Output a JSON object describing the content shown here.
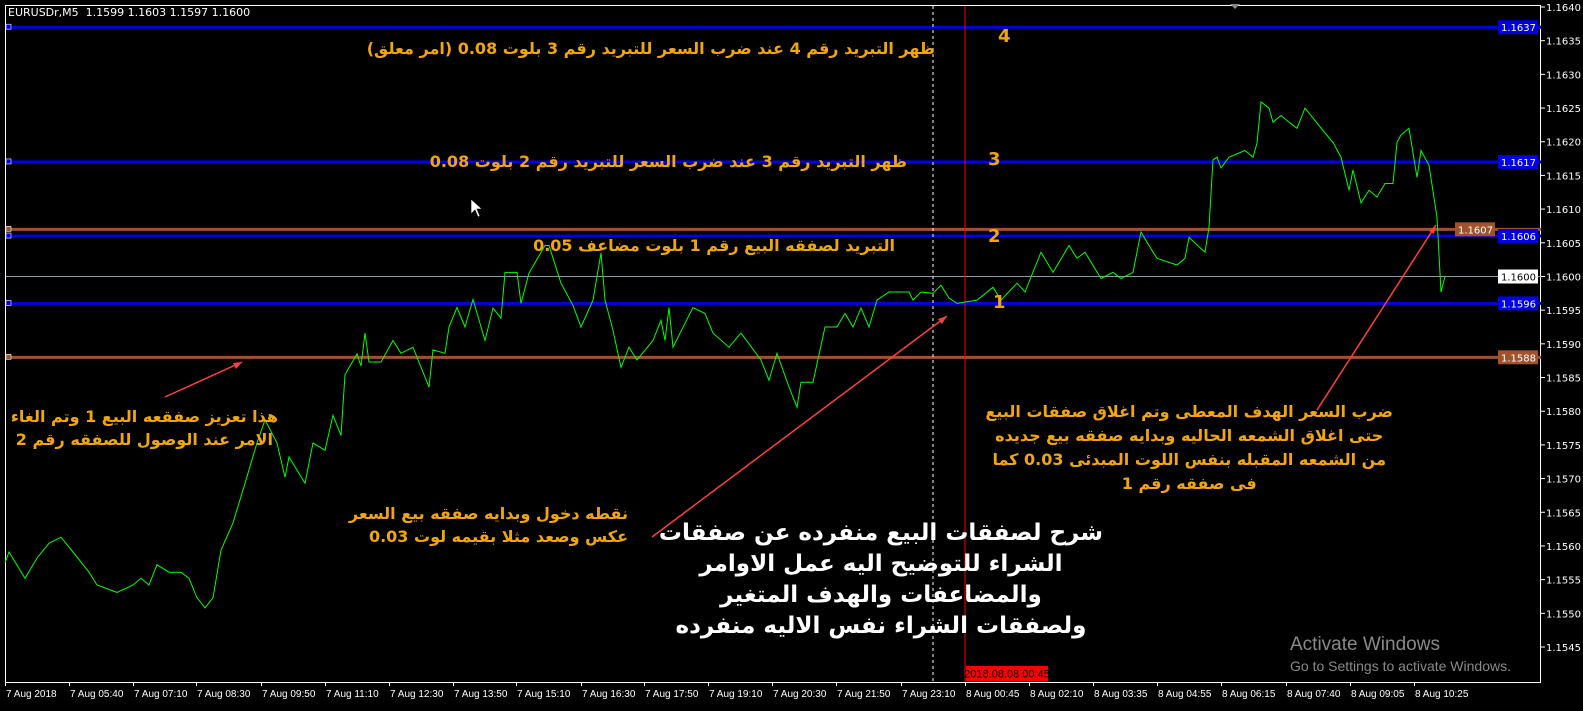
{
  "window": {
    "symbol_info": "EURUSDr,M5  1.1599 1.1603 1.1597 1.1600"
  },
  "colors": {
    "background": "#000000",
    "price_line": "#00ff00",
    "level_blue": "#0000e0",
    "level_brown": "#a0522d",
    "bid_line": "#8a9aa8",
    "annotation_text": "#f2a50c",
    "arrow": "#ff4040",
    "time_marker": "#ff0000"
  },
  "annotations": {
    "level4_text": "ظهر التبريد رقم 4 عند ضرب السعر للتبريد رقم 3 بلوت 0.08 (امر معلق)",
    "level3_text": "ظهر التبريد رقم 3 عند ضرب السعر للتبريد رقم 2 بلوت 0.08",
    "level2_text": "التبريد لصفقه البيع رقم 1 بلوت مضاعف 0.05",
    "num4": "4",
    "num3": "3",
    "num2": "2",
    "num1": "1",
    "left_note": [
      "هذا تعزيز صفقعه البيع 1 وتم الغاء",
      "الامر عند الوصول للصفقه رقم 2"
    ],
    "entry_note": [
      "نقطه دخول وبدايه صفقه بيع السعر",
      "عكس وصعد مثلا بقيمه لوت 0.03"
    ],
    "main_note": [
      "شرح لصفقات البيع منفرده عن صفقات",
      "الشراء للتوضيح اليه عمل الاوامر",
      "والمضاعفات والهدف المتغير",
      "ولصفقات الشراء نفس الاليه منفرده"
    ],
    "target_note": [
      "ضرب السعر الهدف المعطى وتم اغلاق صفقات البيع",
      "حتى اغلاق الشمعه الحاليه وبدايه صفقه بيع  جديده",
      "من الشمعه المقبله بنفس اللوت المبدئى 0.03 كما",
      "فى صفقه رقم 1"
    ]
  },
  "watermark": {
    "line1": "Activate Windows",
    "line2": "Go to Settings to activate Windows."
  },
  "chart_data": {
    "type": "line",
    "title": "EURUSDr,M5",
    "ylim": [
      1.154,
      1.164
    ],
    "y_ticks": [
      "1.1640",
      "1.1635",
      "1.1630",
      "1.1625",
      "1.1620",
      "1.1615",
      "1.1610",
      "1.1605",
      "1.1600",
      "1.1595",
      "1.1590",
      "1.1585",
      "1.1580",
      "1.1575",
      "1.1570",
      "1.1565",
      "1.1560",
      "1.1555",
      "1.1550",
      "1.1545"
    ],
    "x_ticks": [
      "7 Aug 2018",
      "7 Aug 05:40",
      "7 Aug 07:10",
      "7 Aug 08:30",
      "7 Aug 09:50",
      "7 Aug 11:10",
      "7 Aug 12:30",
      "7 Aug 13:50",
      "7 Aug 15:10",
      "7 Aug 16:30",
      "7 Aug 17:50",
      "7 Aug 19:10",
      "7 Aug 20:30",
      "7 Aug 21:50",
      "7 Aug 23:10",
      "8 Aug 00:45",
      "8 Aug 02:10",
      "8 Aug 03:35",
      "8 Aug 04:55",
      "8 Aug 06:15",
      "8 Aug 07:40",
      "8 Aug 09:05",
      "8 Aug 10:25"
    ],
    "grid": false,
    "time_marker_label": "2018.08.08 00:45",
    "levels": [
      {
        "price": 1.1637,
        "label": "1.1637",
        "color": "blue"
      },
      {
        "price": 1.1617,
        "label": "1.1617",
        "color": "blue"
      },
      {
        "price": 1.1607,
        "label": "1.1607",
        "color": "brown"
      },
      {
        "price": 1.1606,
        "label": "1.1606",
        "color": "blue"
      },
      {
        "price": 1.1596,
        "label": "1.1596",
        "color": "blue"
      },
      {
        "price": 1.1588,
        "label": "1.1588",
        "color": "brown"
      }
    ],
    "bid": {
      "price": 1.16,
      "label": "1.1600"
    },
    "series": [
      {
        "points": [
          [
            "7 Aug 04:20",
            1.15575
          ],
          [
            "7 Aug 04:25",
            1.15591
          ],
          [
            "7 Aug 04:45",
            1.15552
          ],
          [
            "7 Aug 05:00",
            1.15582
          ],
          [
            "7 Aug 05:15",
            1.15604
          ],
          [
            "7 Aug 05:30",
            1.15613
          ],
          [
            "7 Aug 05:45",
            1.15591
          ],
          [
            "7 Aug 06:05",
            1.15561
          ],
          [
            "7 Aug 06:15",
            1.15542
          ],
          [
            "7 Aug 06:40",
            1.15531
          ],
          [
            "7 Aug 07:00",
            1.15542
          ],
          [
            "7 Aug 07:10",
            1.15552
          ],
          [
            "7 Aug 07:20",
            1.15542
          ],
          [
            "7 Aug 07:30",
            1.15572
          ],
          [
            "7 Aug 07:45",
            1.15561
          ],
          [
            "7 Aug 08:00",
            1.15561
          ],
          [
            "7 Aug 08:10",
            1.15552
          ],
          [
            "7 Aug 08:20",
            1.15523
          ],
          [
            "7 Aug 08:30",
            1.15508
          ],
          [
            "7 Aug 08:40",
            1.15523
          ],
          [
            "7 Aug 08:50",
            1.15594
          ],
          [
            "7 Aug 09:05",
            1.15634
          ],
          [
            "7 Aug 09:20",
            1.15693
          ],
          [
            "7 Aug 09:35",
            1.15753
          ],
          [
            "7 Aug 09:45",
            1.15787
          ],
          [
            "7 Aug 10:00",
            1.15753
          ],
          [
            "7 Aug 10:10",
            1.15702
          ],
          [
            "7 Aug 10:15",
            1.15732
          ],
          [
            "7 Aug 10:35",
            1.15693
          ],
          [
            "7 Aug 10:45",
            1.15753
          ],
          [
            "7 Aug 11:00",
            1.15742
          ],
          [
            "7 Aug 11:10",
            1.15794
          ],
          [
            "7 Aug 11:20",
            1.15764
          ],
          [
            "7 Aug 11:25",
            1.15854
          ],
          [
            "7 Aug 11:40",
            1.15885
          ],
          [
            "7 Aug 11:45",
            1.15867
          ],
          [
            "7 Aug 11:50",
            1.15916
          ],
          [
            "7 Aug 11:55",
            1.15873
          ],
          [
            "7 Aug 12:10",
            1.15873
          ],
          [
            "7 Aug 12:25",
            1.15905
          ],
          [
            "7 Aug 12:35",
            1.15886
          ],
          [
            "7 Aug 12:50",
            1.15895
          ],
          [
            "7 Aug 12:55",
            1.1588
          ],
          [
            "7 Aug 13:10",
            1.15836
          ],
          [
            "7 Aug 13:15",
            1.15891
          ],
          [
            "7 Aug 13:30",
            1.15886
          ],
          [
            "7 Aug 13:35",
            1.15925
          ],
          [
            "7 Aug 13:45",
            1.15954
          ],
          [
            "7 Aug 13:55",
            1.15925
          ],
          [
            "7 Aug 14:05",
            1.15966
          ],
          [
            "7 Aug 14:20",
            1.15905
          ],
          [
            "7 Aug 14:30",
            1.15953
          ],
          [
            "7 Aug 14:40",
            1.15938
          ],
          [
            "7 Aug 14:45",
            1.16006
          ],
          [
            "7 Aug 15:00",
            1.16006
          ],
          [
            "7 Aug 15:05",
            1.1596
          ],
          [
            "7 Aug 15:15",
            1.16005
          ],
          [
            "7 Aug 15:35",
            1.16046
          ],
          [
            "7 Aug 15:40",
            1.16046
          ],
          [
            "7 Aug 15:55",
            1.1599
          ],
          [
            "7 Aug 16:10",
            1.15957
          ],
          [
            "7 Aug 16:20",
            1.15925
          ],
          [
            "7 Aug 16:35",
            1.15965
          ],
          [
            "7 Aug 16:45",
            1.16035
          ],
          [
            "7 Aug 16:50",
            1.15965
          ],
          [
            "7 Aug 17:00",
            1.1592
          ],
          [
            "7 Aug 17:10",
            1.15865
          ],
          [
            "7 Aug 17:20",
            1.15895
          ],
          [
            "7 Aug 17:30",
            1.15876
          ],
          [
            "7 Aug 17:50",
            1.15905
          ],
          [
            "7 Aug 18:00",
            1.15935
          ],
          [
            "7 Aug 18:05",
            1.15905
          ],
          [
            "7 Aug 18:10",
            1.15954
          ],
          [
            "7 Aug 18:15",
            1.15895
          ],
          [
            "7 Aug 18:40",
            1.15954
          ],
          [
            "7 Aug 18:55",
            1.15945
          ],
          [
            "7 Aug 19:05",
            1.15916
          ],
          [
            "7 Aug 19:25",
            1.15895
          ],
          [
            "7 Aug 19:40",
            1.15916
          ],
          [
            "7 Aug 20:05",
            1.15876
          ],
          [
            "7 Aug 20:15",
            1.15846
          ],
          [
            "7 Aug 20:25",
            1.15886
          ],
          [
            "7 Aug 20:40",
            1.15836
          ],
          [
            "7 Aug 20:50",
            1.15806
          ],
          [
            "7 Aug 20:55",
            1.15843
          ],
          [
            "7 Aug 21:10",
            1.15843
          ],
          [
            "7 Aug 21:25",
            1.15925
          ],
          [
            "7 Aug 21:40",
            1.15925
          ],
          [
            "7 Aug 21:50",
            1.15945
          ],
          [
            "7 Aug 22:00",
            1.15925
          ],
          [
            "7 Aug 22:10",
            1.15953
          ],
          [
            "7 Aug 22:20",
            1.15925
          ],
          [
            "7 Aug 22:30",
            1.15965
          ],
          [
            "7 Aug 22:45",
            1.15977
          ],
          [
            "7 Aug 23:10",
            1.15977
          ],
          [
            "7 Aug 23:15",
            1.15965
          ],
          [
            "7 Aug 23:25",
            1.15977
          ],
          [
            "7 Aug 23:40",
            1.15975
          ],
          [
            "7 Aug 23:50",
            1.15987
          ],
          [
            "8 Aug 00:00",
            1.15968
          ],
          [
            "8 Aug 00:10",
            1.1596
          ],
          [
            "8 Aug 00:35",
            1.15965
          ],
          [
            "8 Aug 00:55",
            1.15984
          ],
          [
            "8 Aug 01:05",
            1.15965
          ],
          [
            "8 Aug 01:25",
            1.1599
          ],
          [
            "8 Aug 01:35",
            1.15977
          ],
          [
            "8 Aug 01:55",
            1.16036
          ],
          [
            "8 Aug 02:10",
            1.16006
          ],
          [
            "8 Aug 02:30",
            1.16046
          ],
          [
            "8 Aug 02:40",
            1.16027
          ],
          [
            "8 Aug 02:50",
            1.16036
          ],
          [
            "8 Aug 03:10",
            1.15997
          ],
          [
            "8 Aug 03:25",
            1.16006
          ],
          [
            "8 Aug 03:35",
            1.15997
          ],
          [
            "8 Aug 03:50",
            1.16006
          ],
          [
            "8 Aug 04:00",
            1.16066
          ],
          [
            "8 Aug 04:10",
            1.16046
          ],
          [
            "8 Aug 04:20",
            1.16027
          ],
          [
            "8 Aug 04:45",
            1.16017
          ],
          [
            "8 Aug 04:55",
            1.16027
          ],
          [
            "8 Aug 05:00",
            1.16058
          ],
          [
            "8 Aug 05:20",
            1.16036
          ],
          [
            "8 Aug 05:25",
            1.16073
          ],
          [
            "8 Aug 05:30",
            1.16173
          ],
          [
            "8 Aug 05:35",
            1.16177
          ],
          [
            "8 Aug 05:40",
            1.16161
          ],
          [
            "8 Aug 05:50",
            1.16177
          ],
          [
            "8 Aug 06:10",
            1.16187
          ],
          [
            "8 Aug 06:20",
            1.16177
          ],
          [
            "8 Aug 06:25",
            1.16198
          ],
          [
            "8 Aug 06:30",
            1.16259
          ],
          [
            "8 Aug 06:40",
            1.1625
          ],
          [
            "8 Aug 06:45",
            1.16229
          ],
          [
            "8 Aug 06:55",
            1.16239
          ],
          [
            "8 Aug 07:05",
            1.16229
          ],
          [
            "8 Aug 07:15",
            1.1622
          ],
          [
            "8 Aug 07:25",
            1.1625
          ],
          [
            "8 Aug 07:50",
            1.16213
          ],
          [
            "8 Aug 08:00",
            1.16199
          ],
          [
            "8 Aug 08:10",
            1.16177
          ],
          [
            "8 Aug 08:20",
            1.16128
          ],
          [
            "8 Aug 08:25",
            1.16158
          ],
          [
            "8 Aug 08:35",
            1.16109
          ],
          [
            "8 Aug 08:45",
            1.16128
          ],
          [
            "8 Aug 08:55",
            1.16118
          ],
          [
            "8 Aug 09:05",
            1.16138
          ],
          [
            "8 Aug 09:15",
            1.16138
          ],
          [
            "8 Aug 09:20",
            1.16199
          ],
          [
            "8 Aug 09:25",
            1.1621
          ],
          [
            "8 Aug 09:35",
            1.1622
          ],
          [
            "8 Aug 09:45",
            1.16147
          ],
          [
            "8 Aug 09:50",
            1.16187
          ],
          [
            "8 Aug 10:00",
            1.16165
          ],
          [
            "8 Aug 10:10",
            1.16088
          ],
          [
            "8 Aug 10:15",
            1.15977
          ],
          [
            "8 Aug 10:20",
            1.16
          ]
        ]
      }
    ]
  }
}
